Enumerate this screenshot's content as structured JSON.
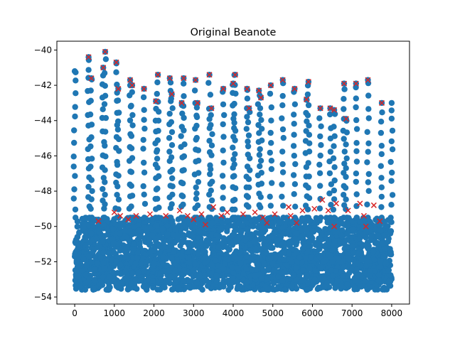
{
  "chart_data": {
    "type": "scatter",
    "title": "Original Beanote",
    "xlabel": "",
    "ylabel": "",
    "xlim": [
      -450,
      8450
    ],
    "ylim": [
      -54.4,
      -39.5
    ],
    "xticks": [
      0,
      1000,
      2000,
      3000,
      4000,
      5000,
      6000,
      7000,
      8000
    ],
    "yticks": [
      -54,
      -52,
      -50,
      -48,
      -46,
      -44,
      -42,
      -40
    ],
    "grid": false,
    "legend": "none",
    "colors": {
      "points": "#1f77b4",
      "markers": "#d62728"
    },
    "series": [
      {
        "marker": "circle",
        "description_values": "dense band between -53.6 and -49.5 across x 0-8000 with vertical columns rising to peaks",
        "band": {
          "x": [
            0,
            8000
          ],
          "y": [
            -53.6,
            -49.5
          ]
        },
        "columns": [
          {
            "x": 0,
            "top": -41.2
          },
          {
            "x": 350,
            "top": -40.4
          },
          {
            "x": 420,
            "top": -41.6
          },
          {
            "x": 720,
            "top": -41.0
          },
          {
            "x": 770,
            "top": -40.1
          },
          {
            "x": 1050,
            "top": -40.7
          },
          {
            "x": 1100,
            "top": -42.2
          },
          {
            "x": 1400,
            "top": -41.7
          },
          {
            "x": 1450,
            "top": -42.0
          },
          {
            "x": 1750,
            "top": -42.2
          },
          {
            "x": 2100,
            "top": -41.4
          },
          {
            "x": 2050,
            "top": -42.9
          },
          {
            "x": 2400,
            "top": -41.6
          },
          {
            "x": 2450,
            "top": -42.5
          },
          {
            "x": 2750,
            "top": -41.6
          },
          {
            "x": 2700,
            "top": -43.0
          },
          {
            "x": 3050,
            "top": -41.7
          },
          {
            "x": 3100,
            "top": -43.0
          },
          {
            "x": 3400,
            "top": -41.4
          },
          {
            "x": 3450,
            "top": -43.3
          },
          {
            "x": 3750,
            "top": -42.2
          },
          {
            "x": 4050,
            "top": -41.4
          },
          {
            "x": 4000,
            "top": -41.9
          },
          {
            "x": 4350,
            "top": -42.2
          },
          {
            "x": 4400,
            "top": -43.3
          },
          {
            "x": 4650,
            "top": -42.3
          },
          {
            "x": 4700,
            "top": -42.7
          },
          {
            "x": 4950,
            "top": -42.0
          },
          {
            "x": 5250,
            "top": -41.7
          },
          {
            "x": 5550,
            "top": -42.2
          },
          {
            "x": 5900,
            "top": -41.8
          },
          {
            "x": 5850,
            "top": -42.8
          },
          {
            "x": 6200,
            "top": -43.3
          },
          {
            "x": 6450,
            "top": -43.3
          },
          {
            "x": 6550,
            "top": -43.4
          },
          {
            "x": 6800,
            "top": -41.9
          },
          {
            "x": 6850,
            "top": -43.9
          },
          {
            "x": 7100,
            "top": -41.9
          },
          {
            "x": 7400,
            "top": -41.7
          },
          {
            "x": 7750,
            "top": -43.0
          },
          {
            "x": 8000,
            "top": -43.0
          }
        ]
      },
      {
        "marker": "x",
        "points": [
          [
            350,
            -40.4
          ],
          [
            420,
            -41.6
          ],
          [
            720,
            -41.0
          ],
          [
            770,
            -40.1
          ],
          [
            1050,
            -40.7
          ],
          [
            1100,
            -42.2
          ],
          [
            1400,
            -41.7
          ],
          [
            1450,
            -42.0
          ],
          [
            1750,
            -42.2
          ],
          [
            2100,
            -41.4
          ],
          [
            2050,
            -42.9
          ],
          [
            2400,
            -41.6
          ],
          [
            2450,
            -42.5
          ],
          [
            2750,
            -41.6
          ],
          [
            2700,
            -43.0
          ],
          [
            3050,
            -41.7
          ],
          [
            3100,
            -43.0
          ],
          [
            3400,
            -41.4
          ],
          [
            3450,
            -43.3
          ],
          [
            3750,
            -42.2
          ],
          [
            4050,
            -41.4
          ],
          [
            4000,
            -41.9
          ],
          [
            4350,
            -42.2
          ],
          [
            4400,
            -43.3
          ],
          [
            4650,
            -42.3
          ],
          [
            4700,
            -42.7
          ],
          [
            4950,
            -42.0
          ],
          [
            5250,
            -41.7
          ],
          [
            5550,
            -42.2
          ],
          [
            5900,
            -41.8
          ],
          [
            5850,
            -42.8
          ],
          [
            6200,
            -43.3
          ],
          [
            6450,
            -43.3
          ],
          [
            6550,
            -43.4
          ],
          [
            6800,
            -41.9
          ],
          [
            6850,
            -43.9
          ],
          [
            7100,
            -41.9
          ],
          [
            7400,
            -41.7
          ],
          [
            7750,
            -43.0
          ],
          [
            600,
            -49.7
          ],
          [
            1000,
            -49.2
          ],
          [
            1150,
            -49.4
          ],
          [
            1350,
            -49.6
          ],
          [
            1550,
            -49.4
          ],
          [
            1900,
            -49.3
          ],
          [
            2300,
            -49.4
          ],
          [
            2650,
            -49.1
          ],
          [
            2850,
            -49.4
          ],
          [
            3000,
            -49.6
          ],
          [
            3200,
            -49.3
          ],
          [
            3300,
            -49.9
          ],
          [
            3500,
            -48.9
          ],
          [
            3700,
            -49.4
          ],
          [
            3850,
            -49.2
          ],
          [
            4250,
            -49.3
          ],
          [
            4550,
            -49.2
          ],
          [
            4750,
            -49.5
          ],
          [
            4850,
            -49.8
          ],
          [
            5050,
            -49.3
          ],
          [
            5400,
            -48.9
          ],
          [
            5450,
            -49.4
          ],
          [
            5600,
            -49.8
          ],
          [
            5750,
            -49.1
          ],
          [
            6050,
            -49.0
          ],
          [
            6250,
            -48.5
          ],
          [
            6400,
            -49.1
          ],
          [
            6550,
            -50.0
          ],
          [
            6600,
            -48.7
          ],
          [
            6900,
            -49.1
          ],
          [
            7200,
            -48.7
          ],
          [
            7300,
            -49.4
          ],
          [
            7350,
            -50.0
          ],
          [
            7550,
            -48.8
          ],
          [
            7700,
            -49.7
          ]
        ]
      }
    ]
  }
}
